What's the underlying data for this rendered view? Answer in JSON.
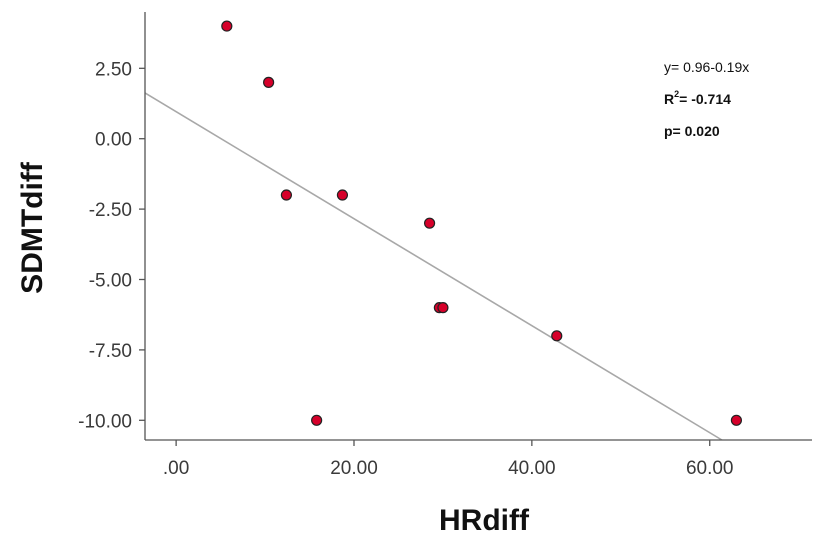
{
  "chart_data": {
    "type": "scatter",
    "xlabel": "HRdiff",
    "ylabel": "SDMTdiff",
    "xlim": [
      -3.5,
      71.5
    ],
    "ylim": [
      -10.7,
      4.5
    ],
    "x_ticks": [
      {
        "value": 0,
        "label": ".00"
      },
      {
        "value": 20,
        "label": "20.00"
      },
      {
        "value": 40,
        "label": "40.00"
      },
      {
        "value": 60,
        "label": "60.00"
      }
    ],
    "y_ticks": [
      {
        "value": 2.5,
        "label": "2.50"
      },
      {
        "value": 0,
        "label": "0.00"
      },
      {
        "value": -2.5,
        "label": "-2.50"
      },
      {
        "value": -5,
        "label": "-5.00"
      },
      {
        "value": -7.5,
        "label": "-7.50"
      },
      {
        "value": -10,
        "label": "-10.00"
      }
    ],
    "points": [
      {
        "x": 5.7,
        "y": 4.0
      },
      {
        "x": 10.4,
        "y": 2.0
      },
      {
        "x": 12.4,
        "y": -2.0
      },
      {
        "x": 18.7,
        "y": -2.0
      },
      {
        "x": 15.8,
        "y": -10.0
      },
      {
        "x": 28.5,
        "y": -3.0
      },
      {
        "x": 29.6,
        "y": -6.0
      },
      {
        "x": 30.0,
        "y": -6.0
      },
      {
        "x": 42.8,
        "y": -7.0
      },
      {
        "x": 63.0,
        "y": -10.0
      }
    ],
    "fit_line": {
      "intercept": 0.96,
      "slope": -0.19
    },
    "annotations": {
      "equation": "y= 0.96-0.19x",
      "r2_prefix": "R",
      "r2_sup": "2",
      "r2_value": "= -0.714",
      "p_value": "p= 0.020"
    },
    "grid": false
  }
}
